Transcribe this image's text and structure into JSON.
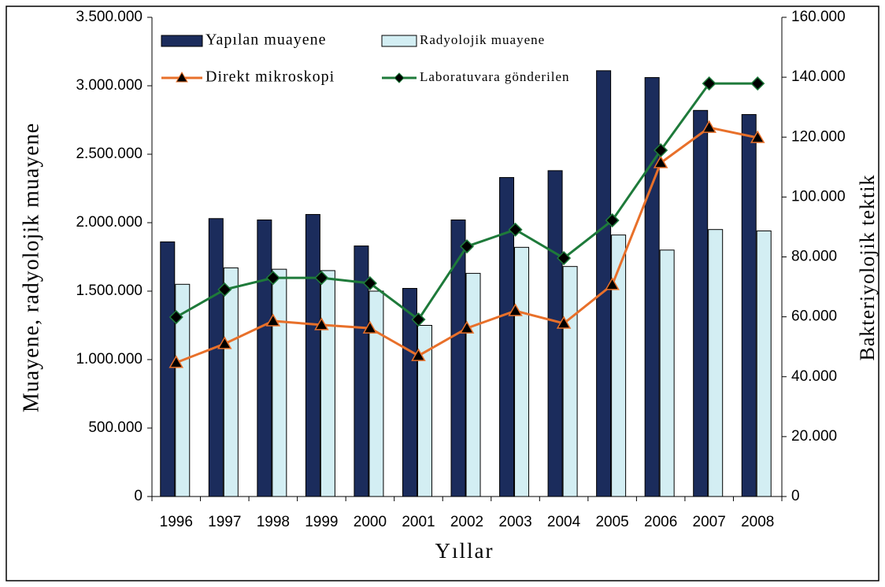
{
  "chart_data": {
    "type": "bar",
    "x_label": "Yıllar",
    "y_label": "Muayene, radyolojik muayene",
    "y2_label": "Bakteriyolojik tektik",
    "categories": [
      "1996",
      "1997",
      "1998",
      "1999",
      "2000",
      "2001",
      "2002",
      "2003",
      "2004",
      "2005",
      "2006",
      "2007",
      "2008"
    ],
    "series": [
      {
        "name": "Yapılan muayene",
        "type": "bar",
        "color": "#1b2c5c",
        "values": [
          1860000,
          2030000,
          2020000,
          2060000,
          1830000,
          1520000,
          2020000,
          2330000,
          2380000,
          3110000,
          3060000,
          2820000,
          2790000
        ]
      },
      {
        "name": "Radyolojik muayene",
        "type": "bar",
        "color": "#d3eef3",
        "values": [
          1550000,
          1670000,
          1660000,
          1650000,
          1500000,
          1250000,
          1630000,
          1820000,
          1680000,
          1910000,
          1800000,
          1950000,
          1940000
        ]
      },
      {
        "name": "Direkt mikroskopi",
        "type": "line",
        "marker": "triangle",
        "axis": "y2",
        "color": "#e8702a",
        "values": [
          44700,
          51000,
          58600,
          57300,
          56200,
          47000,
          56200,
          62000,
          57800,
          70700,
          111400,
          123200,
          119800
        ]
      },
      {
        "name": "Laboratuvara gönderilen",
        "type": "line",
        "marker": "diamond",
        "axis": "y2",
        "color": "#1e7a3a",
        "values": [
          59900,
          69100,
          73000,
          73000,
          71200,
          59100,
          83500,
          89100,
          79600,
          92200,
          115600,
          137900,
          137900
        ]
      }
    ],
    "ylim": [
      0,
      3500000
    ],
    "yticks": [
      0,
      {
        "value": 500000,
        "label": "500.000"
      },
      {
        "value": 1000000,
        "label": "1.000.000"
      },
      {
        "value": 1500000,
        "label": "1.500.000"
      },
      {
        "value": 2000000,
        "label": "2.000.000"
      },
      {
        "value": 2500000,
        "label": "2.500.000"
      },
      {
        "value": 3000000,
        "label": "3.000.000"
      },
      {
        "value": 3500000,
        "label": "3.500.000"
      }
    ],
    "y2lim": [
      0,
      160000
    ],
    "y2ticks": [
      0,
      {
        "value": 20000,
        "label": "20.000"
      },
      {
        "value": 40000,
        "label": "40.000"
      },
      {
        "value": 60000,
        "label": "60.000"
      },
      {
        "value": 80000,
        "label": "80.000"
      },
      {
        "value": 100000,
        "label": "100.000"
      },
      {
        "value": 120000,
        "label": "120.000"
      },
      {
        "value": 140000,
        "label": "140.000"
      },
      {
        "value": 160000,
        "label": "160.000"
      }
    ],
    "legend": "top-left"
  }
}
